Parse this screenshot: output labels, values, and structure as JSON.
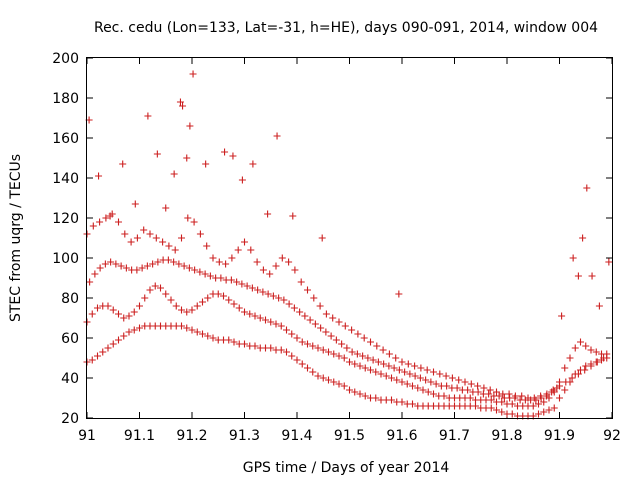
{
  "chart_data": {
    "type": "scatter",
    "title": "Rec. cedu (Lon=133, Lat=-31, h=HE), days 090-091, 2014, window 004",
    "xlabel": "GPS time / Days of year 2014",
    "ylabel": "STEC from uqrg / TECUs",
    "xlim": [
      91,
      92
    ],
    "ylim": [
      20,
      200
    ],
    "xticks": [
      "91",
      "91.1",
      "91.2",
      "91.3",
      "91.4",
      "91.5",
      "91.6",
      "91.7",
      "91.8",
      "91.9",
      "92"
    ],
    "yticks": [
      "20",
      "40",
      "60",
      "80",
      "100",
      "120",
      "140",
      "160",
      "180",
      "200"
    ],
    "grid": false,
    "legend": "none",
    "marker": "plus",
    "color": "#cc1f1f",
    "series": [
      {
        "x": [
          91.0,
          91.01,
          91.02,
          91.03,
          91.04,
          91.05,
          91.06,
          91.07,
          91.08,
          91.09,
          91.1,
          91.11,
          91.12,
          91.13,
          91.14,
          91.15,
          91.16,
          91.17,
          91.18,
          91.19,
          91.2,
          91.21,
          91.22,
          91.23,
          91.24,
          91.25,
          91.26,
          91.27,
          91.28,
          91.29,
          91.3,
          91.31,
          91.32,
          91.33,
          91.34,
          91.35,
          91.36,
          91.37,
          91.38,
          91.39,
          91.4,
          91.41,
          91.42,
          91.43,
          91.44,
          91.45,
          91.46,
          91.47,
          91.48,
          91.49,
          91.5,
          91.51,
          91.52,
          91.53,
          91.54,
          91.55,
          91.56,
          91.57,
          91.58,
          91.59,
          91.6,
          91.61,
          91.62,
          91.63,
          91.64,
          91.65,
          91.66,
          91.67,
          91.68,
          91.69,
          91.7,
          91.71,
          91.72,
          91.73,
          91.74,
          91.75,
          91.76,
          91.77,
          91.78,
          91.79,
          91.8,
          91.81,
          91.82,
          91.83,
          91.84,
          91.85,
          91.86,
          91.87,
          91.88,
          91.89,
          91.9,
          91.91,
          91.92,
          91.93,
          91.94,
          91.95,
          91.96,
          91.97,
          91.98,
          91.99
        ],
        "y": [
          48,
          49,
          51,
          53,
          55,
          57,
          59,
          61,
          63,
          64,
          65,
          66,
          66,
          66,
          66,
          66,
          66,
          66,
          66,
          65,
          64,
          63,
          62,
          61,
          60,
          59,
          59,
          59,
          58,
          57,
          57,
          56,
          56,
          55,
          55,
          55,
          54,
          54,
          53,
          51,
          49,
          47,
          45,
          43,
          41,
          40,
          39,
          38,
          37,
          36,
          34,
          33,
          32,
          31,
          30,
          30,
          29,
          29,
          29,
          28,
          28,
          27,
          27,
          26,
          26,
          26,
          26,
          26,
          26,
          26,
          26,
          26,
          26,
          26,
          26,
          25,
          25,
          25,
          24,
          23,
          22,
          22,
          21,
          21,
          21,
          21,
          22,
          23,
          24,
          25,
          30,
          34,
          38,
          42,
          44,
          46,
          47,
          48,
          49,
          50
        ]
      },
      {
        "x": [
          91.0,
          91.01,
          91.02,
          91.03,
          91.04,
          91.05,
          91.06,
          91.07,
          91.08,
          91.09,
          91.1,
          91.11,
          91.12,
          91.13,
          91.14,
          91.15,
          91.16,
          91.17,
          91.18,
          91.19,
          91.2,
          91.21,
          91.22,
          91.23,
          91.24,
          91.25,
          91.26,
          91.27,
          91.28,
          91.29,
          91.3,
          91.31,
          91.32,
          91.33,
          91.34,
          91.35,
          91.36,
          91.37,
          91.38,
          91.39,
          91.4,
          91.41,
          91.42,
          91.43,
          91.44,
          91.45,
          91.46,
          91.47,
          91.48,
          91.49,
          91.5,
          91.51,
          91.52,
          91.53,
          91.54,
          91.55,
          91.56,
          91.57,
          91.58,
          91.59,
          91.6,
          91.61,
          91.62,
          91.63,
          91.64,
          91.65,
          91.66,
          91.67,
          91.68,
          91.69,
          91.7,
          91.71,
          91.72,
          91.73,
          91.74,
          91.75,
          91.76,
          91.77,
          91.78,
          91.79,
          91.8,
          91.81,
          91.82,
          91.83,
          91.84,
          91.85,
          91.86,
          91.87,
          91.88,
          91.89,
          91.9,
          91.91,
          91.92,
          91.93,
          91.94,
          91.95,
          91.96,
          91.97,
          91.98,
          91.99
        ],
        "y": [
          68,
          72,
          75,
          76,
          76,
          74,
          72,
          70,
          71,
          73,
          76,
          80,
          84,
          86,
          85,
          82,
          79,
          76,
          74,
          73,
          74,
          76,
          78,
          80,
          82,
          82,
          81,
          79,
          77,
          75,
          73,
          72,
          71,
          70,
          69,
          68,
          67,
          66,
          64,
          62,
          60,
          58,
          57,
          56,
          55,
          54,
          53,
          52,
          51,
          50,
          48,
          47,
          46,
          45,
          44,
          43,
          42,
          41,
          40,
          39,
          38,
          37,
          36,
          35,
          34,
          33,
          32,
          31,
          31,
          30,
          30,
          30,
          30,
          30,
          29,
          29,
          29,
          29,
          28,
          28,
          27,
          27,
          26,
          26,
          26,
          26,
          27,
          28,
          30,
          33,
          38,
          45,
          50,
          55,
          58,
          56,
          54,
          53,
          52,
          52
        ]
      },
      {
        "x": [
          91.005,
          91.015,
          91.025,
          91.035,
          91.045,
          91.055,
          91.065,
          91.075,
          91.085,
          91.095,
          91.105,
          91.115,
          91.125,
          91.135,
          91.145,
          91.155,
          91.165,
          91.175,
          91.185,
          91.195,
          91.205,
          91.215,
          91.225,
          91.235,
          91.245,
          91.255,
          91.265,
          91.275,
          91.285,
          91.295,
          91.305,
          91.315,
          91.325,
          91.335,
          91.345,
          91.355,
          91.365,
          91.375,
          91.385,
          91.395,
          91.405,
          91.415,
          91.425,
          91.435,
          91.445,
          91.455,
          91.465,
          91.475,
          91.485,
          91.495,
          91.505,
          91.515,
          91.525,
          91.535,
          91.545,
          91.555,
          91.565,
          91.575,
          91.585,
          91.595,
          91.605,
          91.615,
          91.625,
          91.635,
          91.645,
          91.655,
          91.665,
          91.675,
          91.685,
          91.695,
          91.705,
          91.715,
          91.725,
          91.735,
          91.745,
          91.755,
          91.765,
          91.775,
          91.785,
          91.795,
          91.805,
          91.815,
          91.825,
          91.835,
          91.845,
          91.855,
          91.865,
          91.875,
          91.885,
          91.895
        ],
        "y": [
          88,
          92,
          95,
          97,
          98,
          97,
          96,
          95,
          94,
          94,
          95,
          96,
          97,
          98,
          99,
          99,
          98,
          97,
          96,
          95,
          94,
          93,
          92,
          91,
          90,
          90,
          89,
          89,
          88,
          87,
          86,
          85,
          84,
          83,
          82,
          81,
          80,
          79,
          77,
          75,
          73,
          71,
          69,
          67,
          65,
          63,
          61,
          59,
          57,
          55,
          53,
          52,
          51,
          50,
          49,
          48,
          47,
          46,
          45,
          44,
          43,
          42,
          41,
          40,
          39,
          38,
          37,
          36,
          36,
          35,
          35,
          34,
          34,
          33,
          33,
          32,
          32,
          31,
          31,
          30,
          30,
          30,
          29,
          29,
          29,
          29,
          30,
          31,
          33,
          35
        ]
      },
      {
        "x": [
          91.0,
          91.012,
          91.024,
          91.036,
          91.048,
          91.06,
          91.072,
          91.084,
          91.096,
          91.108,
          91.12,
          91.132,
          91.144,
          91.156,
          91.168,
          91.18,
          91.192,
          91.204,
          91.216,
          91.228,
          91.24,
          91.252,
          91.264,
          91.276,
          91.288,
          91.3,
          91.312,
          91.324,
          91.336,
          91.348,
          91.36,
          91.372,
          91.384,
          91.396,
          91.408,
          91.42,
          91.432,
          91.444,
          91.456,
          91.468,
          91.48,
          91.492,
          91.504,
          91.516,
          91.528,
          91.54,
          91.552,
          91.564,
          91.576,
          91.588,
          91.6,
          91.612,
          91.624,
          91.636,
          91.648,
          91.66,
          91.672,
          91.684,
          91.696,
          91.708,
          91.72,
          91.732,
          91.744,
          91.756,
          91.768,
          91.78,
          91.792,
          91.804,
          91.816,
          91.828,
          91.84,
          91.852,
          91.864,
          91.876,
          91.888,
          91.9,
          91.912,
          91.924,
          91.936,
          91.948,
          91.96,
          91.972,
          91.984
        ],
        "y": [
          112,
          116,
          118,
          120,
          122,
          118,
          112,
          108,
          110,
          114,
          112,
          110,
          108,
          106,
          104,
          110,
          120,
          118,
          112,
          106,
          100,
          98,
          97,
          100,
          104,
          108,
          104,
          98,
          94,
          92,
          96,
          100,
          98,
          94,
          88,
          84,
          80,
          76,
          72,
          70,
          68,
          66,
          64,
          62,
          60,
          58,
          56,
          54,
          52,
          50,
          48,
          47,
          46,
          45,
          44,
          43,
          42,
          41,
          40,
          39,
          38,
          37,
          36,
          35,
          34,
          33,
          32,
          32,
          31,
          31,
          30,
          30,
          31,
          32,
          34,
          36,
          38,
          40,
          42,
          44,
          46,
          48,
          50
        ]
      },
      {
        "x": [
          91.004,
          91.022,
          91.044,
          91.068,
          91.092,
          91.116,
          91.134,
          91.15,
          91.166,
          91.178,
          91.182,
          91.19,
          91.196,
          91.202,
          91.226,
          91.262,
          91.278,
          91.296,
          91.316,
          91.344,
          91.362,
          91.392,
          91.448,
          91.594,
          91.904,
          91.926,
          91.936,
          91.944,
          91.952,
          91.962,
          91.976,
          91.994
        ],
        "y": [
          169,
          141,
          121,
          147,
          127,
          171,
          152,
          125,
          142,
          178,
          176,
          150,
          166,
          192,
          147,
          153,
          151,
          139,
          147,
          122,
          161,
          121,
          110,
          82,
          71,
          100,
          91,
          110,
          135,
          91,
          76,
          98
        ]
      }
    ]
  }
}
